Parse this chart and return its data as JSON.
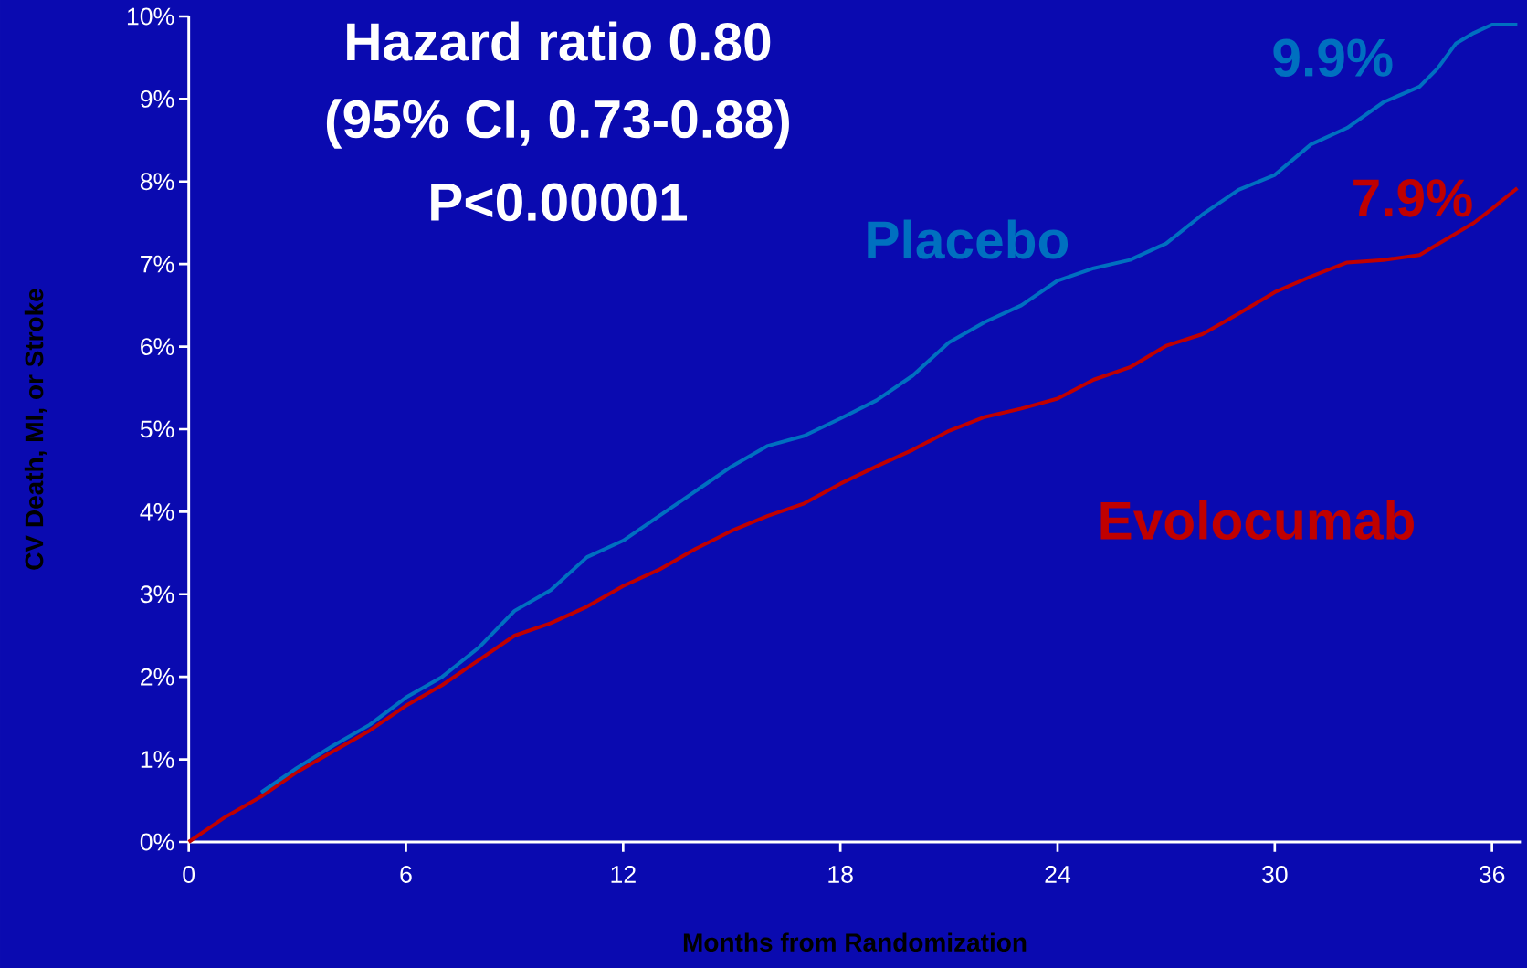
{
  "chart_data": {
    "type": "line",
    "xlabel": "Months from Randomization",
    "ylabel": "CV Death, MI, or Stroke",
    "xlim": [
      0,
      36.8
    ],
    "ylim": [
      0,
      10
    ],
    "xticks": [
      0,
      6,
      12,
      18,
      24,
      30,
      36
    ],
    "yticks": [
      {
        "value": 0,
        "label": "0%"
      },
      {
        "value": 1,
        "label": "1%"
      },
      {
        "value": 2,
        "label": "2%"
      },
      {
        "value": 3,
        "label": "3%"
      },
      {
        "value": 4,
        "label": "4%"
      },
      {
        "value": 5,
        "label": "5%"
      },
      {
        "value": 6,
        "label": "6%"
      },
      {
        "value": 7,
        "label": "7%"
      },
      {
        "value": 8,
        "label": "8%"
      },
      {
        "value": 9,
        "label": "9%"
      },
      {
        "value": 10,
        "label": "10%"
      }
    ],
    "series": [
      {
        "name": "Placebo",
        "color": "#0070c0",
        "x": [
          2,
          3,
          4,
          5,
          6,
          7,
          8,
          9,
          10,
          11,
          12,
          13,
          14,
          15,
          16,
          17,
          18,
          19,
          20,
          21,
          22,
          23,
          24,
          25,
          26,
          27,
          28,
          29,
          30,
          31,
          32,
          33,
          34,
          34.5,
          35,
          35.5,
          36,
          36.7
        ],
        "values": [
          0.6,
          0.9,
          1.17,
          1.42,
          1.75,
          2.0,
          2.35,
          2.8,
          3.05,
          3.45,
          3.65,
          3.95,
          4.25,
          4.55,
          4.8,
          4.92,
          5.13,
          5.35,
          5.65,
          6.05,
          6.3,
          6.5,
          6.8,
          6.95,
          7.05,
          7.25,
          7.6,
          7.9,
          8.08,
          8.45,
          8.65,
          8.96,
          9.15,
          9.37,
          9.67,
          9.8,
          9.9,
          9.9
        ]
      },
      {
        "name": "Evolocumab",
        "color": "#c00000",
        "x": [
          0,
          1,
          2,
          3,
          4,
          5,
          6,
          7,
          8,
          9,
          10,
          11,
          12,
          13,
          14,
          15,
          16,
          17,
          18,
          19,
          20,
          21,
          22,
          23,
          24,
          25,
          26,
          27,
          28,
          29,
          30,
          31,
          32,
          33,
          34,
          35,
          35.5,
          36,
          36.7
        ],
        "values": [
          0,
          0.3,
          0.55,
          0.85,
          1.1,
          1.35,
          1.65,
          1.9,
          2.2,
          2.5,
          2.65,
          2.85,
          3.1,
          3.3,
          3.55,
          3.77,
          3.95,
          4.1,
          4.34,
          4.55,
          4.75,
          4.98,
          5.15,
          5.25,
          5.37,
          5.6,
          5.75,
          6.01,
          6.15,
          6.4,
          6.66,
          6.85,
          7.02,
          7.05,
          7.11,
          7.37,
          7.5,
          7.67,
          7.92
        ]
      }
    ],
    "annotations": [
      "Hazard ratio 0.80",
      "(95% CI, 0.73-0.88)",
      "P<0.00001",
      "9.9%",
      "7.9%"
    ]
  }
}
